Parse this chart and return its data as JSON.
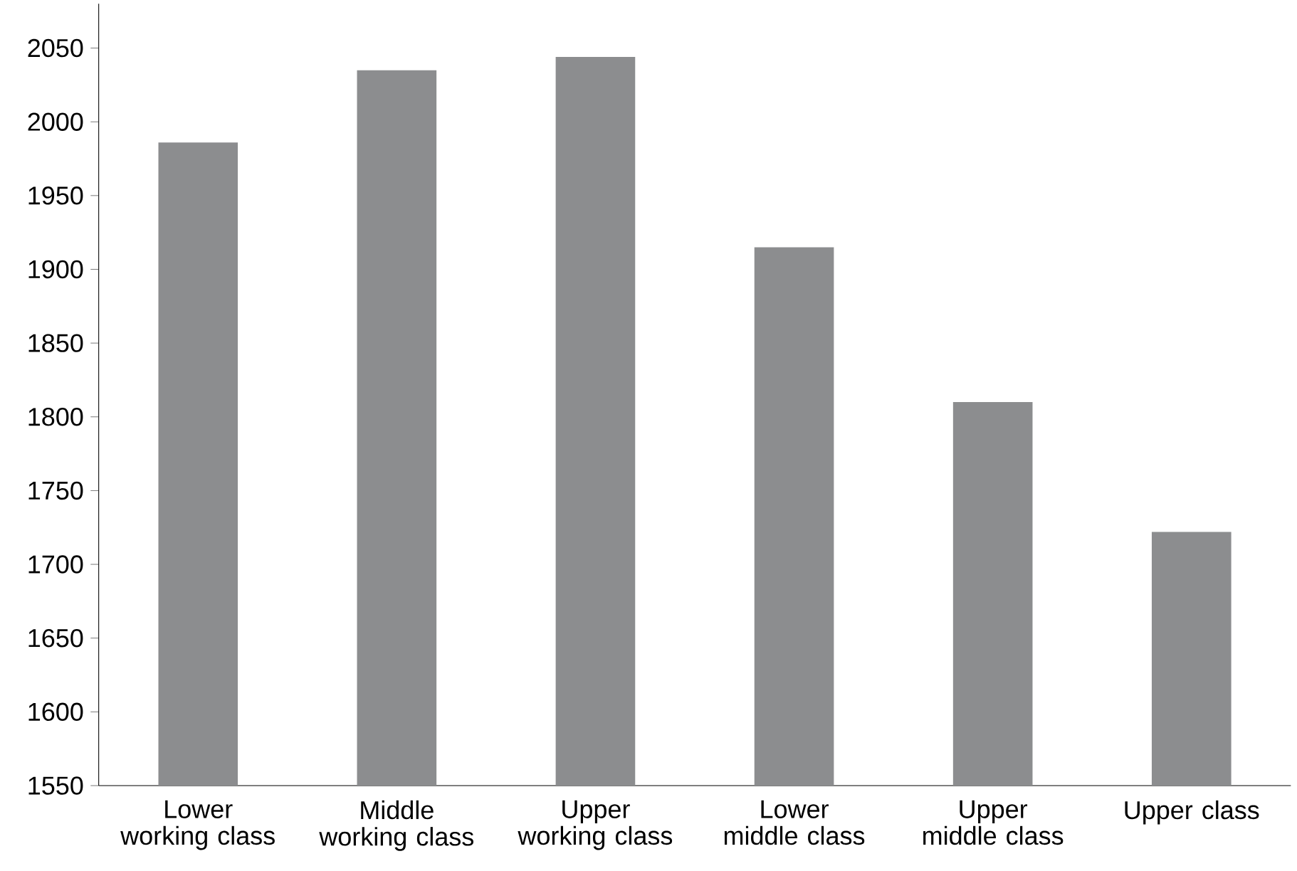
{
  "chart_data": {
    "type": "bar",
    "categories": [
      "Lower working class",
      "Middle working class",
      "Upper working class",
      "Lower middle class",
      "Upper middle class",
      "Upper class"
    ],
    "values": [
      1986,
      2035,
      2044,
      1915,
      1810,
      1722
    ],
    "color": "#8c8d8f",
    "ylim": [
      1550,
      2080
    ],
    "yticks": [
      1550,
      1600,
      1650,
      1700,
      1750,
      1800,
      1850,
      1900,
      1950,
      2000,
      2050
    ],
    "grid": false
  }
}
